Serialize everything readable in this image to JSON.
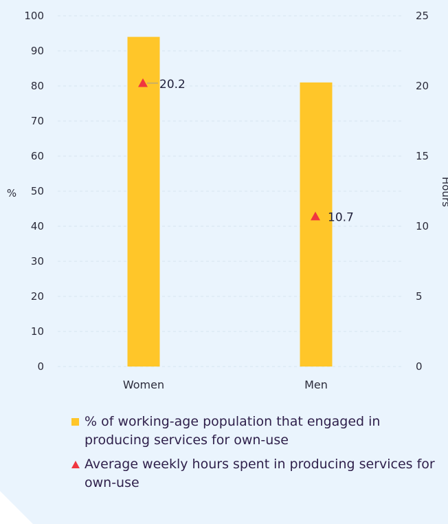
{
  "chart_data": {
    "type": "bar",
    "categories": [
      "Women",
      "Men"
    ],
    "series": [
      {
        "name": "% of working-age population that engaged in producing services for own-use",
        "axis": "left",
        "kind": "bar",
        "values": [
          94,
          81
        ]
      },
      {
        "name": "Average weekly hours spent in producing services for own-use",
        "axis": "right",
        "kind": "marker-triangle",
        "values": [
          20.2,
          10.7
        ],
        "labels": [
          "20.2",
          "10.7"
        ]
      }
    ],
    "ylabel": "%",
    "ylim": [
      0,
      100
    ],
    "yticks": [
      "0",
      "10",
      "20",
      "30",
      "40",
      "50",
      "60",
      "70",
      "80",
      "90",
      "100"
    ],
    "y2label": "Hours",
    "y2lim": [
      0,
      25
    ],
    "y2ticks": [
      "0",
      "5",
      "10",
      "15",
      "20",
      "25"
    ],
    "grid": true,
    "legend_position": "bottom",
    "colors": {
      "bar": "#ffc629",
      "marker": "#f0363f",
      "background": "#eaf4fd",
      "grid": "#d5e3ef"
    }
  },
  "legend": {
    "bar_text": "% of working-age population that engaged in producing services for own-use",
    "marker_text": "Average weekly hours spent in producing services for own-use"
  }
}
